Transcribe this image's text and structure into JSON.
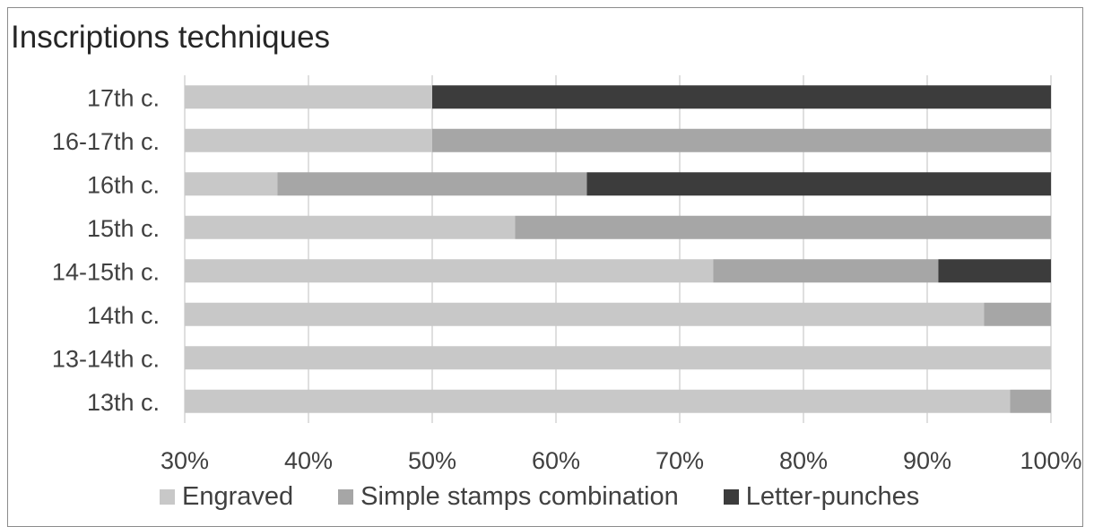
{
  "chart_data": {
    "type": "bar",
    "orientation": "horizontal",
    "stacked": "percent",
    "title": "Inscriptions techniques",
    "categories": [
      "17th c.",
      "16-17th c.",
      "16th c.",
      "15th c.",
      "14-15th c.",
      "14th c.",
      "13-14th c.",
      "13th c."
    ],
    "series": [
      {
        "name": "Engraved",
        "color": "#c8c8c8",
        "values": [
          50,
          50,
          37.5,
          56.7,
          72.7,
          94.6,
          100,
          96.7
        ]
      },
      {
        "name": "Simple stamps combination",
        "color": "#a6a6a6",
        "values": [
          0,
          50,
          25,
          43.3,
          18.2,
          5.4,
          0,
          3.3
        ]
      },
      {
        "name": "Letter-punches",
        "color": "#3c3c3c",
        "values": [
          50,
          0,
          37.5,
          0,
          9.1,
          0,
          0,
          0
        ]
      }
    ],
    "xlim": [
      30,
      100
    ],
    "x_ticks": [
      "30%",
      "40%",
      "50%",
      "60%",
      "70%",
      "80%",
      "90%",
      "100%"
    ],
    "grid": true,
    "legend_position": "bottom"
  }
}
